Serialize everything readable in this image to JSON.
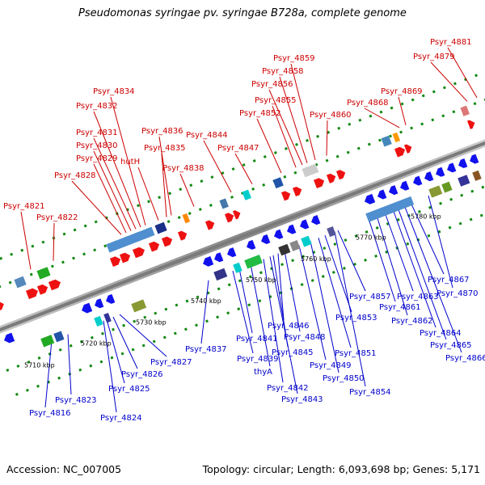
{
  "title": "Pseudomonas syringae pv. syringae B728a, complete genome",
  "footer": {
    "accession": "Accession: NC_007005",
    "info": "Topology: circular; Length: 6,093,698 bp; Genes: 5,171"
  },
  "kbp_labels": [
    "5710 kbp",
    "5720 kbp",
    "5730 kbp",
    "5740 kbp",
    "5750 kbp",
    "5760 kbp",
    "5770 kbp",
    "5780 kbp"
  ],
  "top_genes": [
    "Psyr_4821",
    "Psyr_4822",
    "Psyr_4828",
    "Psyr_4829",
    "Psyr_4830",
    "Psyr_4831",
    "Psyr_4832",
    "Psyr_4834",
    "Psyr_4836",
    "Psyr_4835",
    "hutH",
    "Psyr_4838",
    "Psyr_4844",
    "Psyr_4847",
    "Psyr_4852",
    "Psyr_4855",
    "Psyr_4856",
    "Psyr_4858",
    "Psyr_4859",
    "Psyr_4860",
    "Psyr_4868",
    "Psyr_4869",
    "Psyr_4879",
    "Psyr_4881"
  ],
  "bottom_genes": [
    "Psyr_4816",
    "Psyr_4823",
    "Psyr_4824",
    "Psyr_4825",
    "Psyr_4826",
    "Psyr_4827",
    "Psyr_4837",
    "Psyr_4839",
    "Psyr_4841",
    "thyA",
    "Psyr_4842",
    "Psyr_4843",
    "Psyr_4845",
    "Psyr_4846",
    "Psyr_4848",
    "Psyr_4849",
    "Psyr_4850",
    "Psyr_4851",
    "Psyr_4853",
    "Psyr_4854",
    "Psyr_4857",
    "Psyr_4861",
    "Psyr_4862",
    "Psyr_4863",
    "Psyr_4864",
    "Psyr_4865",
    "Psyr_4866",
    "Psyr_4867",
    "Psyr_4870"
  ],
  "colors": {
    "forward": "#ee1111",
    "reverse": "#1111ee",
    "backbone": "#999999",
    "top_label": "#cc0000",
    "bottom_label": "#0000cc"
  }
}
